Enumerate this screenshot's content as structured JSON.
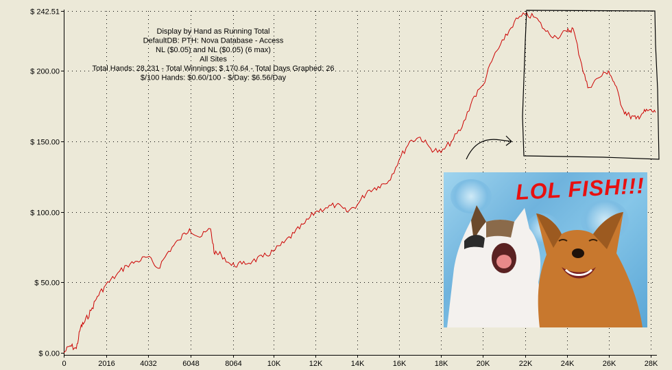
{
  "chart_data": {
    "type": "line",
    "info": [
      "Display by Hand as Running Total",
      "DefaultDB: PTH: Nova Database - Access",
      "NL ($0.05) and NL ($0.05) (6 max)",
      "All Sites",
      "Total Hands: 28,231 - Total Winnings: $ 170.64 - Total Days Graphed: 26",
      "$/100 Hands: $0.60/100 - $/Day: $6.56/Day"
    ],
    "y_ticks": [
      {
        "value": 0,
        "label": "$ 0.00"
      },
      {
        "value": 50,
        "label": "$ 50.00"
      },
      {
        "value": 100,
        "label": "$ 100.00"
      },
      {
        "value": 150,
        "label": "$ 150.00"
      },
      {
        "value": 200,
        "label": "$ 200.00"
      },
      {
        "value": 242.51,
        "label": "$ 242.51"
      }
    ],
    "x_ticks": [
      {
        "value": 0,
        "label": "0"
      },
      {
        "value": 2016,
        "label": "2016"
      },
      {
        "value": 4032,
        "label": "4032"
      },
      {
        "value": 6048,
        "label": "6048"
      },
      {
        "value": 8064,
        "label": "8064"
      },
      {
        "value": 10000,
        "label": "10K"
      },
      {
        "value": 12000,
        "label": "12K"
      },
      {
        "value": 14000,
        "label": "14K"
      },
      {
        "value": 16000,
        "label": "16K"
      },
      {
        "value": 18000,
        "label": "18K"
      },
      {
        "value": 20000,
        "label": "20K"
      },
      {
        "value": 22000,
        "label": "22K"
      },
      {
        "value": 24000,
        "label": "24K"
      },
      {
        "value": 26000,
        "label": "26K"
      },
      {
        "value": 28000,
        "label": "28K"
      }
    ],
    "xlim": [
      0,
      28231
    ],
    "ylim": [
      0,
      242.51
    ],
    "grid": true,
    "series": [
      {
        "color": "#cc0000",
        "x": [
          0,
          300,
          600,
          800,
          1000,
          1300,
          1600,
          2000,
          2500,
          3000,
          3500,
          4000,
          4500,
          5000,
          5500,
          6000,
          6500,
          7000,
          7200,
          7500,
          8000,
          8500,
          9000,
          9500,
          10000,
          10500,
          11000,
          11500,
          12000,
          12500,
          13000,
          13500,
          14000,
          14500,
          15000,
          15500,
          16000,
          16500,
          17000,
          17500,
          18000,
          18500,
          19000,
          19500,
          20000,
          20500,
          21000,
          21500,
          22000,
          22500,
          23000,
          23500,
          24000,
          24300,
          24700,
          25000,
          25500,
          26000,
          26300,
          26700,
          27000,
          27300,
          27600,
          27900,
          28231
        ],
        "y": [
          0,
          5,
          3,
          18,
          22,
          30,
          40,
          48,
          55,
          62,
          65,
          68,
          60,
          72,
          80,
          88,
          82,
          88,
          70,
          70,
          62,
          63,
          65,
          68,
          72,
          78,
          85,
          92,
          100,
          103,
          105,
          100,
          105,
          115,
          118,
          122,
          137,
          150,
          153,
          145,
          142,
          150,
          160,
          180,
          190,
          210,
          222,
          235,
          240,
          238,
          228,
          224,
          228,
          230,
          205,
          188,
          195,
          200,
          190,
          172,
          168,
          166,
          170,
          172,
          170.64
        ]
      }
    ]
  },
  "meme": {
    "caption": "LOL FISH!!!"
  }
}
